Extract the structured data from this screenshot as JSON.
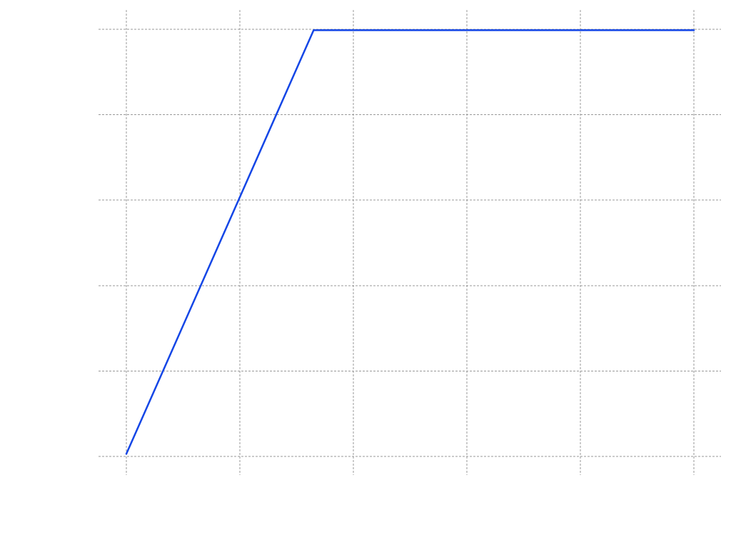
{
  "chart_data": {
    "type": "line",
    "title": "",
    "xlabel": "",
    "ylabel": "",
    "grid": true,
    "x_gridlines": [
      0,
      1,
      2,
      3,
      4,
      5
    ],
    "y_gridlines": [
      0,
      1,
      2,
      3,
      4,
      5
    ],
    "xlim": [
      -0.24,
      5.24
    ],
    "ylim": [
      -0.22,
      5.22
    ],
    "series": [
      {
        "color": "#1446e6",
        "x": [
          0,
          1.65,
          5
        ],
        "y": [
          0.03,
          4.99,
          4.99
        ]
      }
    ]
  }
}
